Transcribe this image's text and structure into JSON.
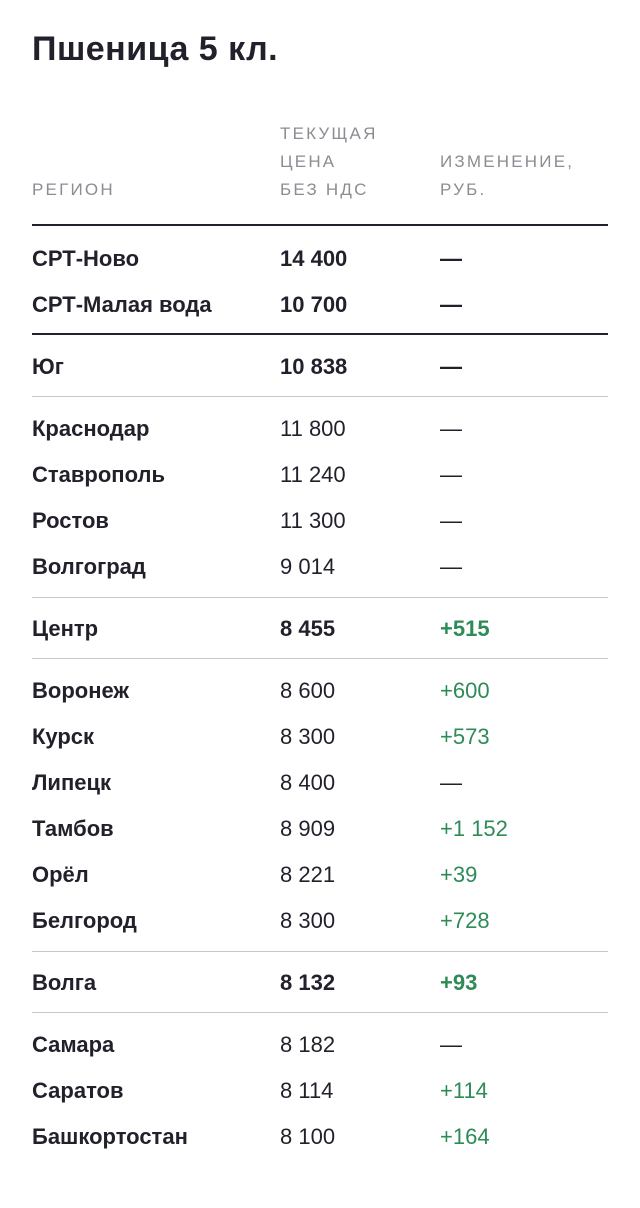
{
  "title": "Пшеница 5 кл.",
  "headers": {
    "region": "РЕГИОН",
    "price_line1": "ТЕКУЩАЯ",
    "price_line2": "ЦЕНА",
    "price_line3": "БЕЗ НДС",
    "change_line1": "ИЗМЕНЕНИЕ,",
    "change_line2": "РУБ."
  },
  "rows": [
    {
      "region": "СРТ-Ново",
      "price": "14 400",
      "change": "—"
    },
    {
      "region": "СРТ-Малая вода",
      "price": "10 700",
      "change": "—"
    },
    {
      "region": "Юг",
      "price": "10 838",
      "change": "—"
    },
    {
      "region": "Краснодар",
      "price": "11 800",
      "change": "—"
    },
    {
      "region": "Ставрополь",
      "price": "11 240",
      "change": "—"
    },
    {
      "region": "Ростов",
      "price": "11 300",
      "change": "—"
    },
    {
      "region": "Волгоград",
      "price": "9 014",
      "change": "—"
    },
    {
      "region": "Центр",
      "price": "8 455",
      "change": "+515"
    },
    {
      "region": "Воронеж",
      "price": "8 600",
      "change": "+600"
    },
    {
      "region": "Курск",
      "price": "8 300",
      "change": "+573"
    },
    {
      "region": "Липецк",
      "price": "8 400",
      "change": "—"
    },
    {
      "region": "Тамбов",
      "price": "8 909",
      "change": "+1 152"
    },
    {
      "region": "Орёл",
      "price": "8 221",
      "change": "+39"
    },
    {
      "region": "Белгород",
      "price": "8 300",
      "change": "+728"
    },
    {
      "region": "Волга",
      "price": "8 132",
      "change": "+93"
    },
    {
      "region": "Самара",
      "price": "8 182",
      "change": "—"
    },
    {
      "region": "Саратов",
      "price": "8 114",
      "change": "+114"
    },
    {
      "region": "Башкортостан",
      "price": "8 100",
      "change": "+164"
    }
  ],
  "colors": {
    "text": "#231f2b",
    "header": "#8e8b93",
    "positive": "#2e8b57",
    "divider": "#c9c7cc"
  }
}
